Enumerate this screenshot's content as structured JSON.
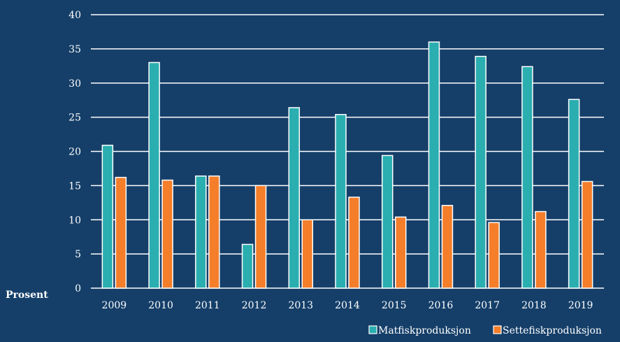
{
  "chart_data": {
    "type": "bar",
    "title": "",
    "xlabel": "",
    "ylabel": "Prosent",
    "ylim": [
      0,
      40
    ],
    "yticks": [
      "0",
      "5",
      "10",
      "15",
      "20",
      "25",
      "30",
      "35",
      "40"
    ],
    "grid": true,
    "legend_position": "bottom-right",
    "categories": [
      "2009",
      "2010",
      "2011",
      "2012",
      "2013",
      "2014",
      "2015",
      "2016",
      "2017",
      "2018",
      "2019"
    ],
    "series": [
      {
        "name": "Matfiskproduksjon",
        "color": "#2AAEB0",
        "values": [
          20.9,
          33.0,
          16.4,
          6.4,
          26.4,
          25.4,
          19.4,
          36.0,
          33.9,
          32.4,
          27.6
        ]
      },
      {
        "name": "Settefiskproduksjon",
        "color": "#F47E2A",
        "values": [
          16.2,
          15.8,
          16.4,
          15.0,
          10.0,
          13.3,
          10.4,
          12.1,
          9.6,
          11.2,
          15.6
        ]
      }
    ],
    "background": "#153F69",
    "gridline_color": "#FFFFFF"
  }
}
